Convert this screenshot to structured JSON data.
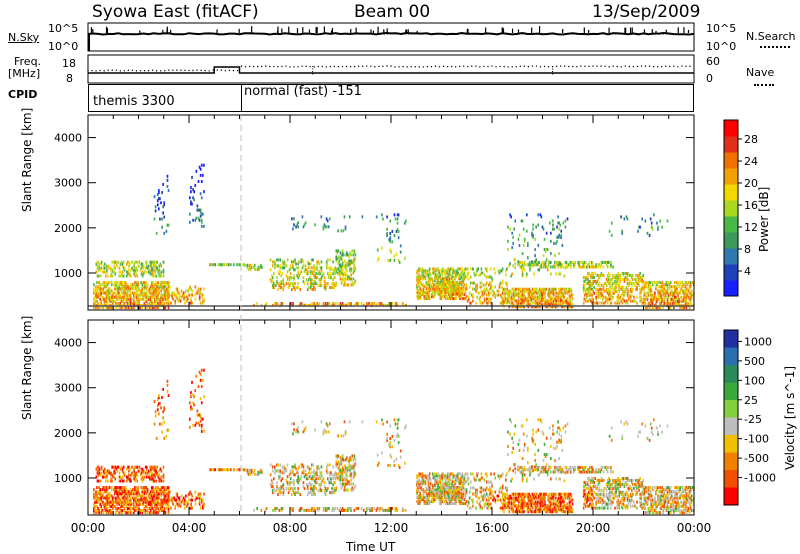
{
  "header": {
    "station": "Syowa East (fitACF)",
    "beam": "Beam 00",
    "date": "13/Sep/2009"
  },
  "top_panels": {
    "nsky_label": "N.Sky",
    "nsky_ticks": [
      "10^5",
      "10^0"
    ],
    "nsearch_label": "N.Search",
    "nsearch_ticks": [
      "10^5",
      "10^0"
    ],
    "freq_label_line1": "Freq.",
    "freq_label_line2": "[MHz]",
    "freq_ticks": [
      "18",
      "8"
    ],
    "nave_label": "Nave",
    "nave_ticks": [
      "60",
      "0"
    ],
    "cpid_label": "CPID",
    "cpid_segments": [
      {
        "label": "themis 3300",
        "start_hour": 0,
        "end_hour": 6
      },
      {
        "label": "normal (fast) -151",
        "start_hour": 6,
        "end_hour": 24
      }
    ]
  },
  "x_axis": {
    "title": "Time UT",
    "ticks": [
      "00:00",
      "04:00",
      "08:00",
      "12:00",
      "16:00",
      "20:00",
      "00:00"
    ]
  },
  "chart_data": [
    {
      "type": "heatmap",
      "name": "power",
      "ylabel": "Slant Range [km]",
      "yticks": [
        "1000",
        "2000",
        "3000",
        "4000"
      ],
      "ylim": [
        180,
        4500
      ],
      "xlim": [
        0,
        24
      ],
      "colorbar_label": "Power [dB]",
      "colorbar_ticks": [
        "4",
        "8",
        "12",
        "16",
        "20",
        "24",
        "28"
      ],
      "colorbar_colors": [
        "#1820ff",
        "#2040b8",
        "#2e7ab0",
        "#3d9a5a",
        "#48b848",
        "#a8d820",
        "#f0d800",
        "#f0a000",
        "#f07000",
        "#e03018",
        "#ff0000"
      ]
    },
    {
      "type": "heatmap",
      "name": "velocity",
      "ylabel": "Slant Range [km]",
      "yticks": [
        "1000",
        "2000",
        "3000",
        "4000"
      ],
      "ylim": [
        180,
        4500
      ],
      "xlim": [
        0,
        24
      ],
      "colorbar_label": "Velocity [m s^-1]",
      "colorbar_ticks": [
        "1000",
        "500",
        "100",
        "25",
        "-25",
        "-100",
        "-500",
        "-1000"
      ],
      "colorbar_colors": [
        "#2030a0",
        "#2a70b0",
        "#2a8a5a",
        "#3aa83a",
        "#80d040",
        "#bdbdbd",
        "#f0c000",
        "#f08000",
        "#f05000",
        "#ff0000"
      ]
    }
  ]
}
